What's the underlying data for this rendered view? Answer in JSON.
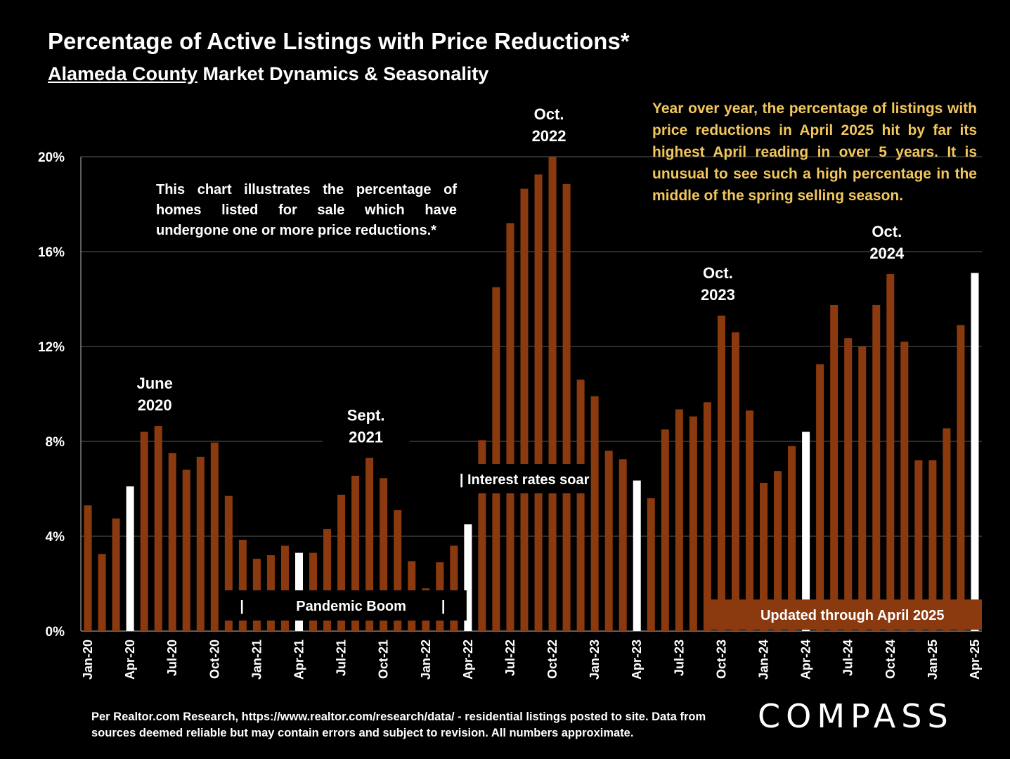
{
  "header": {
    "title": "Percentage of Active Listings with Price Reductions*",
    "subtitle_underlined": "Alameda County",
    "subtitle_rest": " Market Dynamics & Seasonality"
  },
  "notes": {
    "left_lines": [
      "This chart illustrates the percentage of",
      "homes listed for sale which have",
      "undergone one or more price reductions.*"
    ],
    "right": "Year over year, the percentage of listings with price reductions in April 2025 hit by far its highest April reading in over 5 years. It is unusual to see such a high percentage in the middle of the spring selling season."
  },
  "footer": {
    "source": "Per Realtor.com Research, https://www.realtor.com/research/data/ - residential listings posted to site.  Data from sources deemed reliable but may contain errors and subject to revision. All numbers approximate.",
    "logo": "COMPASS"
  },
  "colors": {
    "bar": "#8b3a0f",
    "highlight": "#ffffff",
    "background": "#000000",
    "note_text": "#f2c75c"
  },
  "chart_data": {
    "type": "bar",
    "ylim": [
      0,
      20
    ],
    "yticks": [
      "0%",
      "4%",
      "8%",
      "12%",
      "16%",
      "20%"
    ],
    "grid": true,
    "categories": [
      "Jan-20",
      "Feb-20",
      "Mar-20",
      "Apr-20",
      "May-20",
      "Jun-20",
      "Jul-20",
      "Aug-20",
      "Sep-20",
      "Oct-20",
      "Nov-20",
      "Dec-20",
      "Jan-21",
      "Feb-21",
      "Mar-21",
      "Apr-21",
      "May-21",
      "Jun-21",
      "Jul-21",
      "Aug-21",
      "Sep-21",
      "Oct-21",
      "Nov-21",
      "Dec-21",
      "Jan-22",
      "Feb-22",
      "Mar-22",
      "Apr-22",
      "May-22",
      "Jun-22",
      "Jul-22",
      "Aug-22",
      "Sep-22",
      "Oct-22",
      "Nov-22",
      "Dec-22",
      "Jan-23",
      "Feb-23",
      "Mar-23",
      "Apr-23",
      "May-23",
      "Jun-23",
      "Jul-23",
      "Aug-23",
      "Sep-23",
      "Oct-23",
      "Nov-23",
      "Dec-23",
      "Jan-24",
      "Feb-24",
      "Mar-24",
      "Apr-24",
      "May-24",
      "Jun-24",
      "Jul-24",
      "Aug-24",
      "Sep-24",
      "Oct-24",
      "Nov-24",
      "Dec-24",
      "Jan-25",
      "Feb-25",
      "Mar-25",
      "Apr-25"
    ],
    "xtick_labels": [
      "Jan-20",
      "Apr-20",
      "Jul-20",
      "Oct-20",
      "Jan-21",
      "Apr-21",
      "Jul-21",
      "Oct-21",
      "Jan-22",
      "Apr-22",
      "Jul-22",
      "Oct-22",
      "Jan-23",
      "Apr-23",
      "Jul-23",
      "Oct-23",
      "Jan-24",
      "Apr-24",
      "Jul-24",
      "Oct-24",
      "Jan-25",
      "Apr-25"
    ],
    "values": [
      5.3,
      3.25,
      4.75,
      6.1,
      8.4,
      8.65,
      7.5,
      6.8,
      7.35,
      7.95,
      5.7,
      3.85,
      3.05,
      3.2,
      3.6,
      3.3,
      3.3,
      4.3,
      5.75,
      6.55,
      7.3,
      6.45,
      5.1,
      2.95,
      1.8,
      2.9,
      3.6,
      4.5,
      8.05,
      14.5,
      17.2,
      18.65,
      19.25,
      20.0,
      18.85,
      10.6,
      9.9,
      7.6,
      7.25,
      6.35,
      5.6,
      8.5,
      9.35,
      9.05,
      9.65,
      13.3,
      12.6,
      9.3,
      6.25,
      6.75,
      7.8,
      8.4,
      11.25,
      13.75,
      12.35,
      12.0,
      13.75,
      15.05,
      12.2,
      7.2,
      7.2,
      8.55,
      12.9,
      15.1
    ],
    "highlighted": [
      "Apr-20",
      "Apr-21",
      "Apr-22",
      "Apr-23",
      "Apr-24",
      "Apr-25"
    ],
    "annotations": [
      {
        "lines": [
          "June",
          "2020"
        ],
        "at": "Jun-20"
      },
      {
        "lines": [
          "Sept.",
          "2021"
        ],
        "at": "Sep-21"
      },
      {
        "lines": [
          "Oct.",
          "2022"
        ],
        "at": "Oct-22"
      },
      {
        "lines": [
          "Oct.",
          "2023"
        ],
        "at": "Oct-23"
      },
      {
        "lines": [
          "Oct.",
          "2024"
        ],
        "at": "Oct-24"
      }
    ],
    "boxes": {
      "pandemic": "Pandemic Boom",
      "rates": "| Interest rates soar",
      "updated": "Updated through April 2025"
    }
  }
}
